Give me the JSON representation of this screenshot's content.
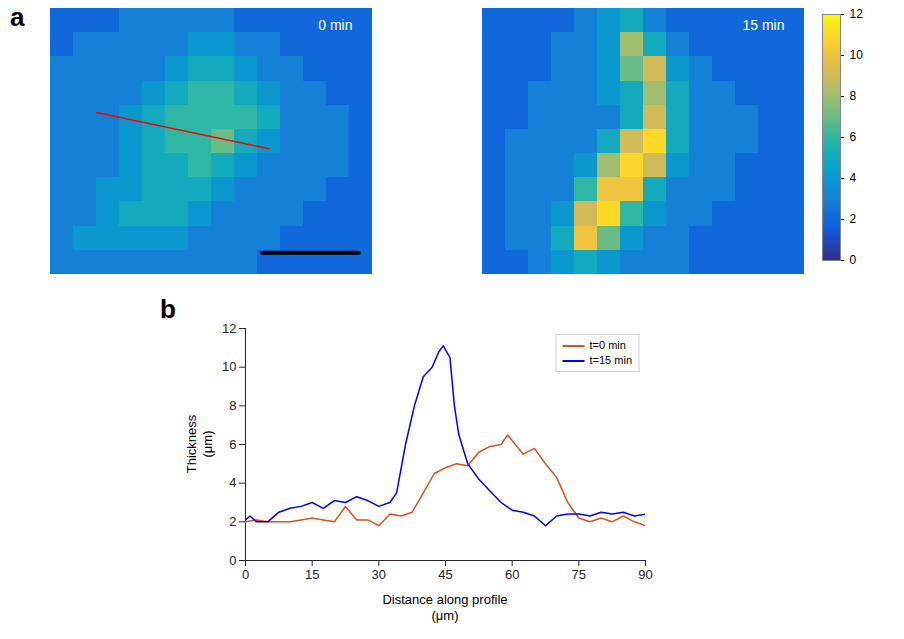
{
  "chart_data": [
    {
      "type": "heatmap",
      "panel": "a",
      "title": "0 min",
      "cells": [
        [
          2,
          2,
          2,
          3,
          3,
          3,
          3,
          3,
          2,
          2,
          2,
          2,
          2,
          2
        ],
        [
          2,
          3,
          3,
          3,
          3,
          3,
          4,
          4,
          3,
          3,
          2,
          2,
          2,
          2
        ],
        [
          3,
          3,
          3,
          3,
          3,
          4,
          5,
          5,
          4,
          3,
          3,
          2,
          2,
          2
        ],
        [
          3,
          3,
          3,
          3,
          4,
          5,
          6,
          6,
          5,
          4,
          3,
          3,
          2,
          2
        ],
        [
          3,
          3,
          3,
          4,
          5,
          6,
          6,
          6,
          6,
          5,
          3,
          3,
          3,
          2
        ],
        [
          3,
          3,
          3,
          4,
          5,
          6,
          6,
          7,
          5,
          4,
          3,
          3,
          3,
          2
        ],
        [
          3,
          3,
          3,
          4,
          5,
          5,
          6,
          5,
          4,
          3,
          3,
          3,
          3,
          2
        ],
        [
          3,
          3,
          4,
          4,
          5,
          5,
          5,
          4,
          3,
          3,
          3,
          3,
          2,
          2
        ],
        [
          3,
          3,
          4,
          5,
          5,
          5,
          4,
          3,
          3,
          3,
          3,
          2,
          2,
          2
        ],
        [
          3,
          4,
          4,
          4,
          4,
          4,
          3,
          3,
          3,
          3,
          2,
          2,
          2,
          2
        ],
        [
          3,
          3,
          3,
          3,
          3,
          3,
          3,
          3,
          3,
          2,
          2,
          2,
          2,
          2
        ]
      ],
      "profile": {
        "x": [
          2,
          9.5
        ],
        "y": [
          4.3,
          5.8
        ],
        "color": "red"
      },
      "scale_bar": {
        "x": [
          9.2,
          13.4
        ],
        "y": 10.1,
        "color": "black"
      }
    },
    {
      "type": "heatmap",
      "title": "15 min",
      "cells": [
        [
          2,
          2,
          2,
          2,
          3,
          4,
          5,
          3,
          2,
          2,
          2,
          2,
          2,
          2
        ],
        [
          2,
          2,
          2,
          3,
          3,
          4,
          8,
          5,
          3,
          2,
          2,
          2,
          2,
          2
        ],
        [
          2,
          2,
          2,
          3,
          3,
          4,
          7,
          9,
          4,
          3,
          2,
          2,
          2,
          2
        ],
        [
          2,
          2,
          3,
          3,
          3,
          4,
          5,
          8,
          5,
          3,
          3,
          2,
          2,
          2
        ],
        [
          2,
          2,
          3,
          3,
          3,
          3,
          5,
          9,
          5,
          3,
          3,
          3,
          2,
          2
        ],
        [
          2,
          3,
          3,
          3,
          3,
          5,
          9,
          11,
          5,
          3,
          3,
          3,
          2,
          2
        ],
        [
          2,
          3,
          3,
          3,
          4,
          8,
          11,
          9,
          4,
          3,
          3,
          2,
          2,
          2
        ],
        [
          2,
          3,
          3,
          3,
          6,
          10,
          10,
          5,
          3,
          3,
          3,
          2,
          2,
          2
        ],
        [
          2,
          3,
          3,
          4,
          9,
          11,
          6,
          4,
          3,
          3,
          2,
          2,
          2,
          2
        ],
        [
          2,
          3,
          3,
          5,
          10,
          7,
          4,
          3,
          3,
          2,
          2,
          2,
          2,
          2
        ],
        [
          2,
          2,
          3,
          4,
          5,
          4,
          3,
          3,
          3,
          2,
          2,
          2,
          2,
          2
        ]
      ]
    },
    {
      "type": "colorbar",
      "range": [
        0,
        12
      ],
      "ticks": [
        0,
        2,
        4,
        6,
        8,
        10,
        12
      ],
      "colors": [
        "#352a87",
        "#0f5cdd",
        "#1481d6",
        "#06a4ca",
        "#2eb7a4",
        "#87bf77",
        "#d1bb59",
        "#fec832",
        "#f9fb0e"
      ]
    },
    {
      "type": "line",
      "panel": "b",
      "x_label": "Distance along profile\n(μm)",
      "y_label": "Thickness\n(μm)",
      "xlim": [
        0,
        90
      ],
      "xticks": [
        0,
        15,
        30,
        45,
        60,
        75,
        90
      ],
      "ylim": [
        0,
        12
      ],
      "yticks": [
        0,
        2,
        4,
        6,
        8,
        10,
        12
      ],
      "legend": "upper right",
      "series": [
        {
          "name": "t=0 min",
          "color": "#D95319",
          "x": [
            0,
            2.5,
            5,
            7.5,
            10,
            12.5,
            15,
            17.5,
            20,
            22.5,
            25,
            27.5,
            30,
            32.5,
            35,
            37.5,
            40,
            42.5,
            45,
            47.5,
            50,
            52.5,
            55,
            57.5,
            59,
            60,
            62.5,
            65,
            67.5,
            70,
            72.5,
            75,
            77.5,
            80,
            82.5,
            85,
            87.5,
            90
          ],
          "values": [
            2.0,
            2.1,
            2.0,
            2.0,
            2.0,
            2.1,
            2.2,
            2.1,
            2.0,
            2.8,
            2.1,
            2.1,
            1.8,
            2.4,
            2.3,
            2.5,
            3.5,
            4.5,
            4.8,
            5.0,
            4.9,
            5.6,
            5.9,
            6.0,
            6.5,
            6.2,
            5.5,
            5.8,
            5.0,
            4.3,
            3.0,
            2.2,
            2.0,
            2.2,
            2.0,
            2.3,
            2.0,
            1.8
          ]
        },
        {
          "name": "t=15 min",
          "color": "#0000FF",
          "x": [
            0,
            1,
            2.5,
            5,
            7.5,
            10,
            12.5,
            15,
            17.5,
            20,
            22.5,
            25,
            27.5,
            30,
            32.5,
            34,
            36,
            38,
            40,
            42,
            43.5,
            44.5,
            46,
            47,
            48,
            50,
            52.5,
            55,
            57.5,
            60,
            62.5,
            65,
            67.5,
            70,
            72.5,
            75,
            77.5,
            80,
            82.5,
            85,
            87.5,
            90
          ],
          "values": [
            2.1,
            2.3,
            2.0,
            2.0,
            2.5,
            2.7,
            2.8,
            3.0,
            2.7,
            3.1,
            3.0,
            3.3,
            3.1,
            2.8,
            3.0,
            3.5,
            6.0,
            8.0,
            9.5,
            10.0,
            10.8,
            11.1,
            10.5,
            8.0,
            6.5,
            5.0,
            4.2,
            3.6,
            3.0,
            2.6,
            2.5,
            2.3,
            1.8,
            2.3,
            2.4,
            2.4,
            2.3,
            2.5,
            2.4,
            2.5,
            2.3,
            2.4
          ]
        }
      ]
    }
  ]
}
